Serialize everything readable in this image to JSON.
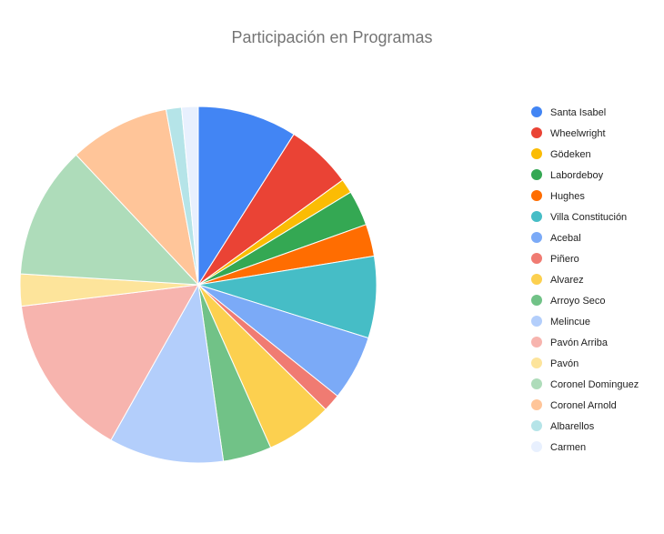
{
  "chart_data": {
    "type": "pie",
    "title": "Participación en Programas",
    "categories": [
      "Santa Isabel",
      "Wheelwright",
      "Gödeken",
      "Labordeboy",
      "Hughes",
      "Villa Constitución",
      "Acebal",
      "Piñero",
      "Alvarez",
      "Arroyo Seco",
      "Melincue",
      "Pavón Arriba",
      "Pavón",
      "Coronel Dominguez",
      "Coronel Arnold",
      "Albarellos",
      "Carmen"
    ],
    "values": [
      9.0,
      6.0,
      1.3,
      3.2,
      2.9,
      7.4,
      5.9,
      1.6,
      6.0,
      4.4,
      10.4,
      14.9,
      2.9,
      12.0,
      9.1,
      1.4,
      1.5
    ],
    "colors": [
      "#4285f4",
      "#ea4335",
      "#fbbc04",
      "#34a853",
      "#ff6d01",
      "#46bdc6",
      "#7baaf7",
      "#f07b72",
      "#fcd04f",
      "#71c287",
      "#b3cefb",
      "#f7b4ae",
      "#fde49b",
      "#aedcba",
      "#ffc599",
      "#b5e4e8",
      "#e8f0fe"
    ],
    "legend": "right"
  }
}
